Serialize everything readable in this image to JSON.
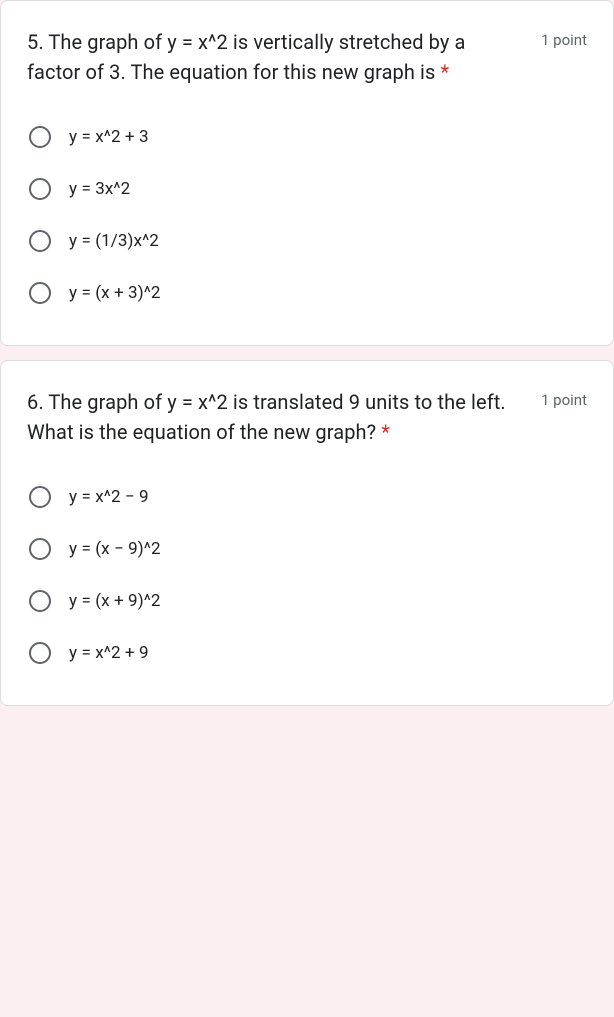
{
  "colors": {
    "page_bg": "#fbeff1",
    "card_bg": "#ffffff",
    "card_border": "#dadce0",
    "text_primary": "#202124",
    "text_secondary": "#5f6368",
    "required": "#d93025",
    "radio_border": "#5f6368"
  },
  "typography": {
    "question_fontsize": 20,
    "question_lineheight": 30,
    "points_fontsize": 15,
    "option_fontsize": 17
  },
  "questions": [
    {
      "text": "5. The graph of y = x^2 is vertically stretched by a factor of 3. The equation for this new graph is ",
      "required_marker": "*",
      "points": "1 point",
      "options": [
        "y = x^2 + 3",
        "y = 3x^2",
        "y = (1/3)x^2",
        "y = (x + 3)^2"
      ]
    },
    {
      "text": "6. The graph of y = x^2 is translated 9 units to the left. What is the equation of the new graph? ",
      "required_marker": "*",
      "points": "1 point",
      "options": [
        "y = x^2 − 9",
        "y = (x − 9)^2",
        "y = (x + 9)^2",
        "y = x^2 + 9"
      ]
    }
  ]
}
